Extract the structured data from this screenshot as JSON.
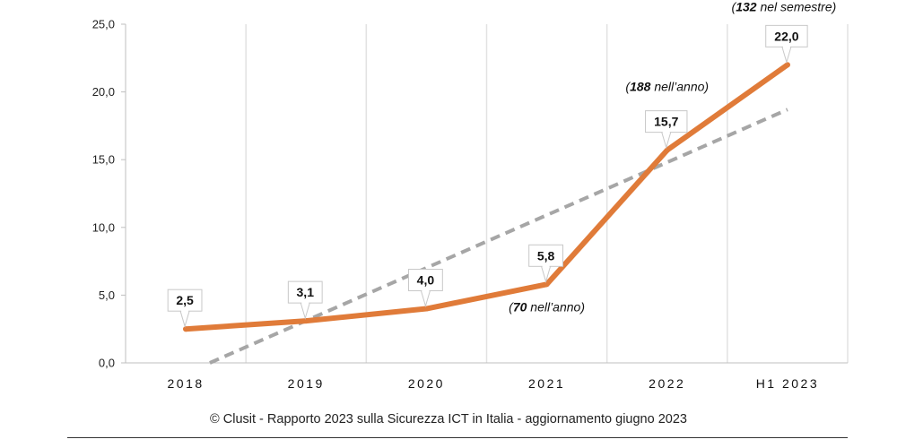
{
  "chart_data": {
    "type": "line",
    "categories": [
      "2018",
      "2019",
      "2020",
      "2021",
      "2022",
      "H1 2023"
    ],
    "series": [
      {
        "values": [
          2.5,
          3.1,
          4.0,
          5.8,
          15.7,
          22.0
        ],
        "color": "#E07B39"
      }
    ],
    "data_labels": [
      "2,5",
      "3,1",
      "4,0",
      "5,8",
      "15,7",
      "22,0"
    ],
    "trendline": {
      "style": "dashed",
      "color": "#A6A6A6",
      "start": [
        0.2,
        0
      ],
      "end": [
        5,
        18.7
      ]
    },
    "ylim": [
      0,
      25
    ],
    "yticks": [
      0,
      5,
      10,
      15,
      20,
      25
    ],
    "ytick_labels": [
      "0,0",
      "5,0",
      "10,0",
      "15,0",
      "20,0",
      "25,0"
    ],
    "grid": "vertical",
    "title": "",
    "xlabel": "",
    "ylabel": "",
    "annotations": [
      {
        "category": "2021",
        "num": "70",
        "text": " nell’anno"
      },
      {
        "category": "2022",
        "num": "188",
        "text": " nell’anno"
      },
      {
        "category": "H1 2023",
        "num": "132",
        "text": " nel semestre"
      }
    ]
  },
  "caption": "© Clusit - Rapporto 2023 sulla Sicurezza ICT in Italia - aggiornamento giugno 2023"
}
